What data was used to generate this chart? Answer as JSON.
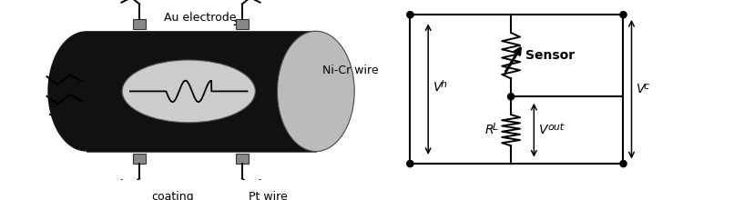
{
  "bg_color": "#ffffff",
  "tube_color": "#111111",
  "tube_end_color": "#bbbbbb",
  "ellipse_fill": "#cccccc",
  "electrode_color": "#888888",
  "line_color": "#000000",
  "text_color": "#000000",
  "labels": {
    "au_electrode": "Au electrode",
    "ni_cr": "Ni-Cr wire",
    "coating": "coating",
    "pt_wire": "Pt wire",
    "vh": "V",
    "vh_sub": "h",
    "sensor": "Sensor",
    "rl": "R",
    "rl_sub": "L",
    "vout": "V",
    "vout_sub": "out",
    "vc": "V",
    "vc_sub": "c"
  },
  "font_size": 9
}
